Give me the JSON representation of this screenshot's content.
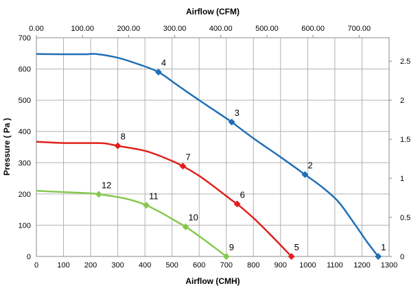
{
  "chart_data": {
    "type": "line",
    "xlabel": "Airflow (CMH)",
    "x2label": "Airflow (CFM)",
    "ylabel": "Pressure ( Pa )",
    "xlim": [
      0,
      1300
    ],
    "x_ticks": [
      "0",
      "100",
      "200",
      "300",
      "400",
      "500",
      "600",
      "700",
      "800",
      "900",
      "1000",
      "1100",
      "1200",
      "1300"
    ],
    "x2lim": [
      0,
      765
    ],
    "x2_ticks": [
      "0.00",
      "100.00",
      "200.00",
      "300.00",
      "400.00",
      "500.00",
      "600.00",
      "700.00"
    ],
    "ylim": [
      0,
      700
    ],
    "y_ticks": [
      "0",
      "100",
      "200",
      "300",
      "400",
      "500",
      "600",
      "700"
    ],
    "y2lim": [
      0,
      2.8
    ],
    "y2_ticks": [
      "0",
      "0.5",
      "1",
      "1.5",
      "2",
      "2.5"
    ],
    "grid": true,
    "series": [
      {
        "color": "#1f6fb5",
        "curve": [
          [
            0,
            648
          ],
          [
            100,
            647
          ],
          [
            180,
            647
          ],
          [
            220,
            648
          ],
          [
            300,
            636
          ],
          [
            380,
            614
          ],
          [
            450,
            590
          ],
          [
            520,
            548
          ],
          [
            600,
            500
          ],
          [
            700,
            442
          ],
          [
            720,
            430
          ],
          [
            800,
            378
          ],
          [
            900,
            318
          ],
          [
            990,
            262
          ],
          [
            1050,
            224
          ],
          [
            1110,
            178
          ],
          [
            1160,
            120
          ],
          [
            1220,
            45
          ],
          [
            1260,
            0
          ]
        ],
        "points": [
          {
            "label": "1",
            "x": 1260,
            "y": 0
          },
          {
            "label": "2",
            "x": 990,
            "y": 262
          },
          {
            "label": "3",
            "x": 720,
            "y": 430
          },
          {
            "label": "4",
            "x": 450,
            "y": 590
          }
        ]
      },
      {
        "color": "#e0201b",
        "curve": [
          [
            0,
            367
          ],
          [
            100,
            363
          ],
          [
            200,
            363
          ],
          [
            250,
            362
          ],
          [
            300,
            354
          ],
          [
            400,
            338
          ],
          [
            480,
            313
          ],
          [
            540,
            289
          ],
          [
            600,
            258
          ],
          [
            660,
            220
          ],
          [
            720,
            180
          ],
          [
            740,
            168
          ],
          [
            800,
            123
          ],
          [
            860,
            72
          ],
          [
            940,
            0
          ]
        ],
        "points": [
          {
            "label": "5",
            "x": 940,
            "y": 0
          },
          {
            "label": "6",
            "x": 740,
            "y": 168
          },
          {
            "label": "7",
            "x": 540,
            "y": 289
          },
          {
            "label": "8",
            "x": 300,
            "y": 354
          }
        ]
      },
      {
        "color": "#86c84f",
        "curve": [
          [
            0,
            210
          ],
          [
            100,
            206
          ],
          [
            200,
            202
          ],
          [
            230,
            199
          ],
          [
            300,
            190
          ],
          [
            360,
            178
          ],
          [
            405,
            164
          ],
          [
            460,
            140
          ],
          [
            510,
            115
          ],
          [
            550,
            95
          ],
          [
            600,
            65
          ],
          [
            650,
            33
          ],
          [
            700,
            0
          ]
        ],
        "points": [
          {
            "label": "9",
            "x": 700,
            "y": 0
          },
          {
            "label": "10",
            "x": 550,
            "y": 95
          },
          {
            "label": "11",
            "x": 405,
            "y": 164
          },
          {
            "label": "12",
            "x": 230,
            "y": 199
          }
        ]
      }
    ]
  }
}
